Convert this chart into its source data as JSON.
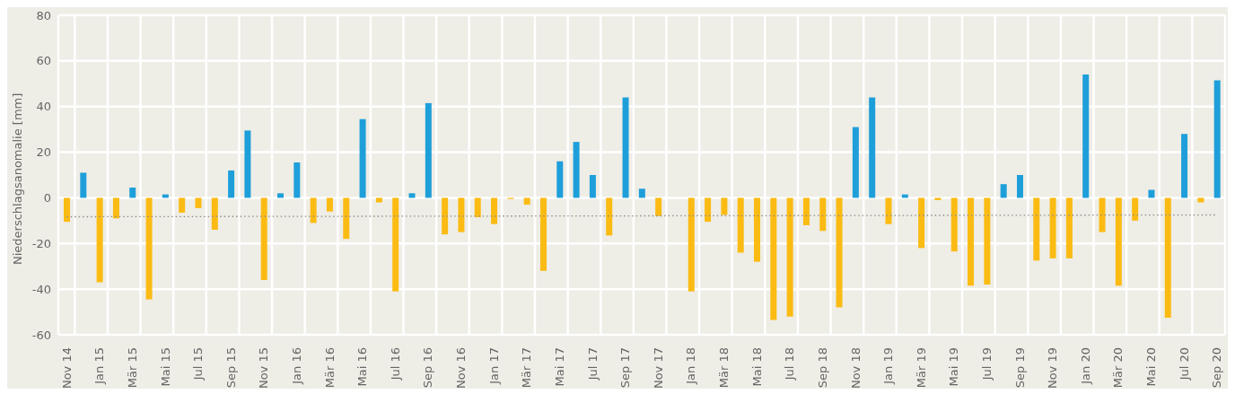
{
  "chart_data": {
    "type": "bar",
    "ylabel": "Niederschlagsanomalie [mm]",
    "categories": [
      "Nov 14",
      null,
      "Jan 15",
      null,
      "Mär 15",
      null,
      "Mai 15",
      null,
      "Jul 15",
      null,
      "Sep 15",
      null,
      "Nov 15",
      null,
      "Jan 16",
      null,
      "Mär 16",
      null,
      "Mai 16",
      null,
      "Jul 16",
      null,
      "Sep 16",
      null,
      "Nov 16",
      null,
      "Jan 17",
      null,
      "Mär 17",
      null,
      "Mai 17",
      null,
      "Jul 17",
      null,
      "Sep 17",
      null,
      "Nov 17",
      null,
      "Jan 18",
      null,
      "Mär 18",
      null,
      "Mai 18",
      null,
      "Jul 18",
      null,
      "Sep 18",
      null,
      "Nov 18",
      null,
      "Jan 19",
      null,
      "Mär 19",
      null,
      "Mai 19",
      null,
      "Jul 19",
      null,
      "Sep 19",
      null,
      "Nov 19",
      null,
      "Jan 20",
      null,
      "Mär 20",
      null,
      "Mai 20",
      null,
      "Jul 20",
      null,
      "Sep 20"
    ],
    "series": [
      {
        "values": [
          -10.5,
          11,
          -37,
          -9,
          4.5,
          -44.5,
          1.5,
          -6.5,
          -4.5,
          -14,
          12,
          29.5,
          -36,
          2,
          15.5,
          -11,
          -6,
          -18,
          34.5,
          -2,
          -41,
          2,
          41.5,
          -16,
          -15,
          -8.5,
          -11.5,
          -0.5,
          -3,
          -32,
          16,
          24.5,
          10,
          -16.5,
          44,
          4,
          -8,
          0,
          -41,
          -10.5,
          -7.5,
          -24,
          -28,
          -53.5,
          -52,
          -12,
          -14.5,
          -48,
          31,
          44,
          -11.5,
          1.5,
          -22,
          -1,
          -23.5,
          -38.5,
          -38,
          6,
          10,
          -27.5,
          -26.5,
          -26.5,
          54,
          -15,
          -38.5,
          -10,
          3.5,
          -52.5,
          28,
          -2,
          51.5
        ],
        "colors": [
          "#fbbb13",
          "#1e9fda",
          "#fbbb13",
          "#fbbb13",
          "#1e9fda",
          "#fbbb13",
          "#1e9fda",
          "#fbbb13",
          "#fbbb13",
          "#fbbb13",
          "#1e9fda",
          "#1e9fda",
          "#fbbb13",
          "#1e9fda",
          "#1e9fda",
          "#fbbb13",
          "#fbbb13",
          "#fbbb13",
          "#1e9fda",
          "#fbbb13",
          "#fbbb13",
          "#1e9fda",
          "#1e9fda",
          "#fbbb13",
          "#fbbb13",
          "#fbbb13",
          "#fbbb13",
          "#fbbb13",
          "#fbbb13",
          "#fbbb13",
          "#1e9fda",
          "#1e9fda",
          "#1e9fda",
          "#fbbb13",
          "#1e9fda",
          "#1e9fda",
          "#fbbb13",
          "#fbbb13",
          "#fbbb13",
          "#fbbb13",
          "#fbbb13",
          "#fbbb13",
          "#fbbb13",
          "#fbbb13",
          "#fbbb13",
          "#fbbb13",
          "#fbbb13",
          "#fbbb13",
          "#1e9fda",
          "#1e9fda",
          "#fbbb13",
          "#1e9fda",
          "#fbbb13",
          "#fbbb13",
          "#fbbb13",
          "#fbbb13",
          "#fbbb13",
          "#1e9fda",
          "#1e9fda",
          "#fbbb13",
          "#fbbb13",
          "#fbbb13",
          "#1e9fda",
          "#fbbb13",
          "#fbbb13",
          "#fbbb13",
          "#1e9fda",
          "#fbbb13",
          "#1e9fda",
          "#fbbb13",
          "#1e9fda"
        ]
      },
      {
        "type": "line",
        "color": "#8c8c8c",
        "line_style": "dotted",
        "values": [
          -8.3,
          null,
          null,
          null,
          null,
          null,
          null,
          null,
          null,
          null,
          null,
          null,
          null,
          null,
          null,
          null,
          null,
          null,
          null,
          null,
          null,
          null,
          null,
          null,
          null,
          null,
          null,
          null,
          null,
          null,
          null,
          null,
          null,
          null,
          null,
          null,
          null,
          null,
          null,
          null,
          null,
          null,
          null,
          null,
          null,
          null,
          null,
          null,
          null,
          null,
          null,
          null,
          null,
          null,
          null,
          null,
          null,
          null,
          null,
          null,
          null,
          null,
          null,
          null,
          null,
          null,
          null,
          null,
          null,
          null,
          -7.5
        ]
      }
    ],
    "ylim": [
      -60,
      80
    ],
    "yticks": [
      -60,
      -40,
      -20,
      0,
      20,
      40,
      60,
      80
    ],
    "grid": true,
    "marker": "none"
  }
}
